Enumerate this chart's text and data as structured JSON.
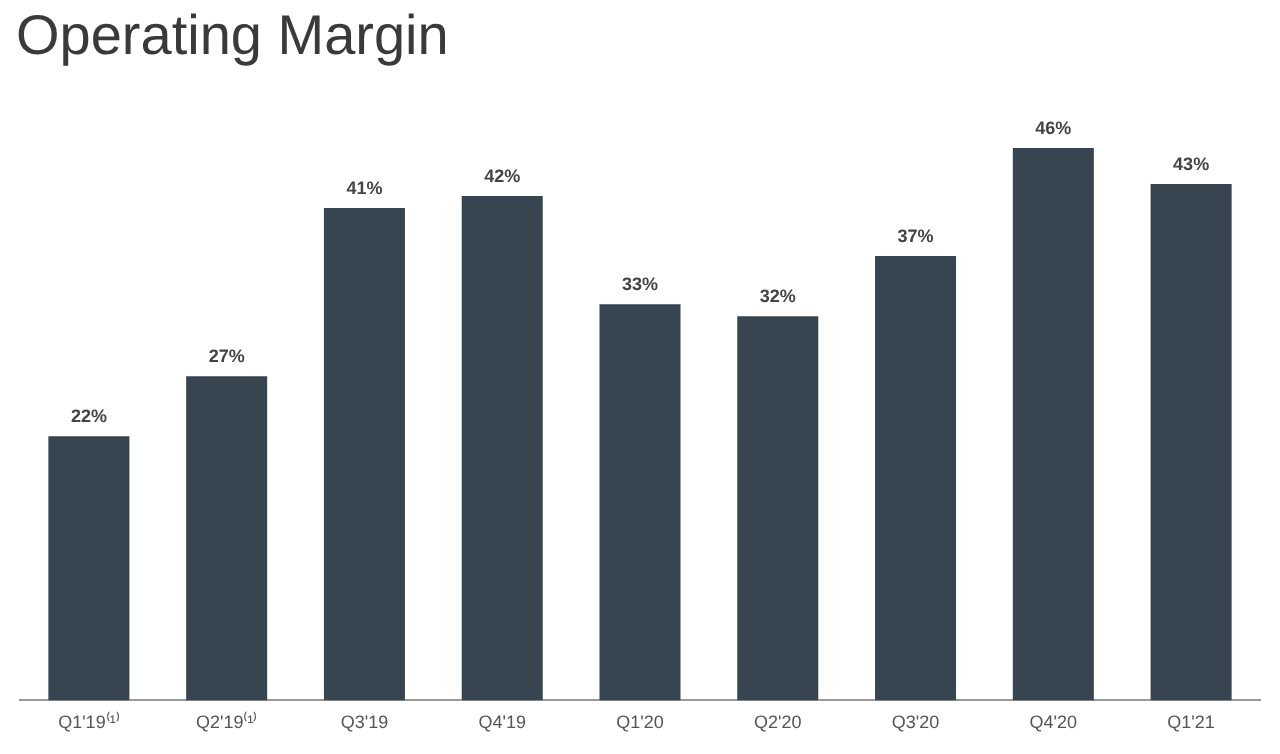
{
  "chart_data": {
    "type": "bar",
    "title": "Operating Margin",
    "categories": [
      "Q1'19⁽¹⁾",
      "Q2'19⁽¹⁾",
      "Q3'19",
      "Q4'19",
      "Q1'20",
      "Q2'20",
      "Q3'20",
      "Q4'20",
      "Q1'21"
    ],
    "values": [
      22,
      27,
      41,
      42,
      33,
      32,
      37,
      46,
      43
    ],
    "value_labels": [
      "22%",
      "27%",
      "41%",
      "42%",
      "33%",
      "32%",
      "37%",
      "46%",
      "43%"
    ],
    "color": "#36454f",
    "grid": false,
    "legend": false,
    "tick_labels": "x"
  }
}
